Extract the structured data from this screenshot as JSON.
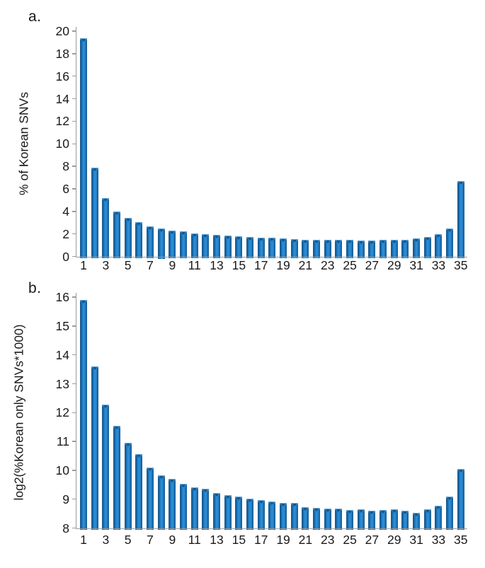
{
  "colors": {
    "background": "#ffffff",
    "bar_main": "#1d7cc4",
    "bar_edge_dark": "#0f4c7e",
    "bar_highlight": "#2f90d9",
    "axis_line": "#9c9c9c",
    "text": "#1a1a1a"
  },
  "chart_data": [
    {
      "type": "bar",
      "panel_label": "a.",
      "title": "",
      "xlabel": "",
      "ylabel": "% of Korean SNVs",
      "ylim": [
        0,
        20
      ],
      "yticks": [
        0,
        2,
        4,
        6,
        8,
        10,
        12,
        14,
        16,
        18,
        20
      ],
      "categories": [
        1,
        2,
        3,
        4,
        5,
        6,
        7,
        8,
        9,
        10,
        11,
        12,
        13,
        14,
        15,
        16,
        17,
        18,
        19,
        20,
        21,
        22,
        23,
        24,
        25,
        26,
        27,
        28,
        29,
        30,
        31,
        32,
        33,
        34,
        35
      ],
      "xticks": [
        1,
        3,
        5,
        7,
        9,
        11,
        13,
        15,
        17,
        19,
        21,
        23,
        25,
        27,
        29,
        31,
        33,
        35
      ],
      "grid": false,
      "legend": false,
      "values": [
        19.4,
        7.9,
        5.2,
        4.0,
        3.4,
        3.05,
        2.7,
        2.5,
        2.3,
        2.2,
        2.05,
        2.0,
        1.9,
        1.85,
        1.8,
        1.7,
        1.65,
        1.65,
        1.6,
        1.55,
        1.5,
        1.5,
        1.45,
        1.5,
        1.5,
        1.4,
        1.4,
        1.45,
        1.5,
        1.45,
        1.6,
        1.7,
        1.95,
        2.45,
        6.7
      ]
    },
    {
      "type": "bar",
      "panel_label": "b.",
      "title": "",
      "xlabel": "",
      "ylabel": "log2(%Korean only SNVs*1000)",
      "ylim": [
        8,
        16
      ],
      "yticks": [
        8,
        9,
        10,
        11,
        12,
        13,
        14,
        15,
        16
      ],
      "categories": [
        1,
        2,
        3,
        4,
        5,
        6,
        7,
        8,
        9,
        10,
        11,
        12,
        13,
        14,
        15,
        16,
        17,
        18,
        19,
        20,
        21,
        22,
        23,
        24,
        25,
        26,
        27,
        28,
        29,
        30,
        31,
        32,
        33,
        34,
        35
      ],
      "xticks": [
        1,
        3,
        5,
        7,
        9,
        11,
        13,
        15,
        17,
        19,
        21,
        23,
        25,
        27,
        29,
        31,
        33,
        35
      ],
      "grid": false,
      "legend": false,
      "values": [
        15.9,
        13.6,
        12.27,
        11.55,
        10.95,
        10.55,
        10.1,
        9.82,
        9.7,
        9.52,
        9.4,
        9.37,
        9.22,
        9.13,
        9.1,
        9.02,
        8.98,
        8.93,
        8.88,
        8.87,
        8.73,
        8.7,
        8.68,
        8.67,
        8.63,
        8.64,
        8.6,
        8.62,
        8.64,
        8.59,
        8.52,
        8.66,
        8.76,
        9.08,
        10.04
      ]
    }
  ]
}
